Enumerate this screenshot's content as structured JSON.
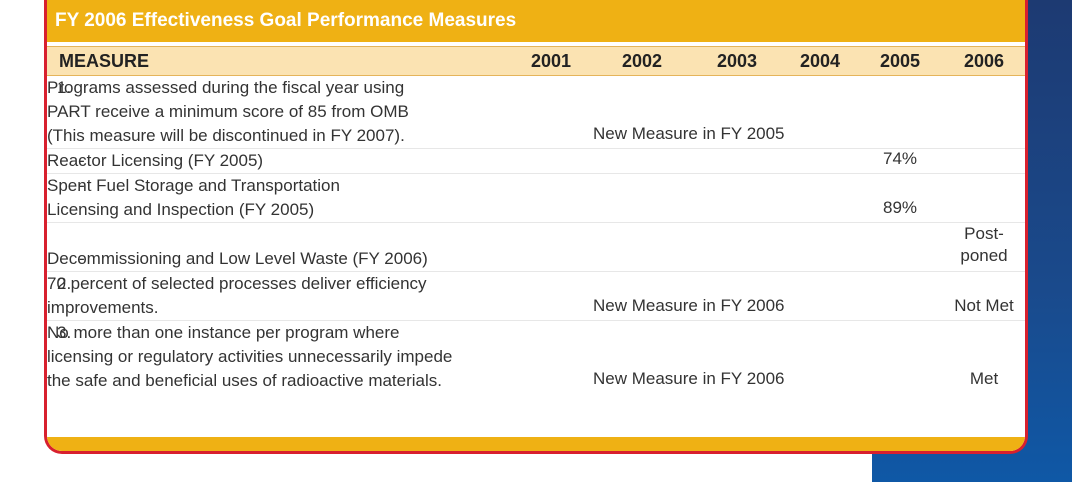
{
  "title": "FY 2006 Effectiveness Goal Performance Measures",
  "colors": {
    "header_band": "#efb114",
    "table_header": "#fbe3b2",
    "card_border": "#d8202e",
    "side_band": "#1a4a8c"
  },
  "columns": [
    "MEASURE",
    "2001",
    "2002",
    "2003",
    "2004",
    "2005",
    "2006"
  ],
  "rows": [
    {
      "number": "1.",
      "lines": [
        "Programs assessed during the fiscal year using",
        "PART receive a minimum score of 85 from OMB",
        "(This measure will be discontinued in FY 2007)."
      ],
      "span_note": "New Measure in FY 2005",
      "v2005": "",
      "v2006": ""
    },
    {
      "number": "-",
      "lines": [
        "Reactor Licensing (FY 2005)"
      ],
      "span_note": "",
      "v2005": "74%",
      "v2006": ""
    },
    {
      "number": "-",
      "lines": [
        "Spent Fuel Storage and Transportation",
        "Licensing and Inspection (FY 2005)"
      ],
      "span_note": "",
      "v2005": "89%",
      "v2006": ""
    },
    {
      "number": "-",
      "lines": [
        "Decommissioning and Low Level Waste (FY 2006)"
      ],
      "span_note": "",
      "v2005": "",
      "v2006": "Post-poned"
    },
    {
      "number": "2.",
      "lines": [
        "70 percent of selected  processes deliver efficiency",
        "improvements."
      ],
      "span_note": "New Measure in FY 2006",
      "v2005": "",
      "v2006": "Not Met"
    },
    {
      "number": "3.",
      "lines": [
        "No more than one instance per program where",
        "licensing or regulatory activities unnecessarily impede",
        "the safe and beneficial uses of radioactive materials."
      ],
      "span_note": "New Measure in FY 2006",
      "v2005": "",
      "v2006": "Met"
    }
  ]
}
